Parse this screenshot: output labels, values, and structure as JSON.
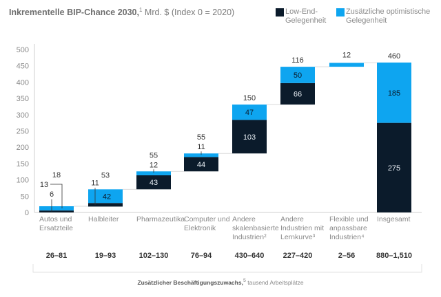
{
  "chart_data": {
    "type": "bar",
    "subtype": "waterfall-stacked",
    "title": "Inkrementelle BIP-Chance 2030,",
    "title_footnote": "1",
    "title_unit": "Mrd. $ (Index 0 = 2020)",
    "ylim": [
      0,
      500
    ],
    "yticks": [
      0,
      50,
      100,
      150,
      200,
      250,
      300,
      350,
      400,
      450,
      500
    ],
    "grid": false,
    "legend": {
      "placement": "top-right",
      "entries": [
        {
          "name": "Low-End-Gelegenheit",
          "color": "#0b1b2b"
        },
        {
          "name": "Zusätzliche optimistische Gelegenheit",
          "color": "#0ea5f0"
        }
      ]
    },
    "categories": [
      "Autos und Ersatzteile",
      "Halbleiter",
      "Pharmazeutika",
      "Computer und Elektronik",
      "Andere skalenbasierte Industrien²",
      "Andere Industrien mit Lernkurve³",
      "Flexible und anpassbare Industrien⁴",
      "Insgesamt"
    ],
    "category_lines": [
      [
        "Autos und",
        "Ersatzteile"
      ],
      [
        "Halbleiter"
      ],
      [
        "Pharmazeutika"
      ],
      [
        "Computer und",
        "Elektronik"
      ],
      [
        "Andere",
        "skalenbasierte",
        "Industrien²"
      ],
      [
        "Andere",
        "Industrien mit",
        "Lernkurve³"
      ],
      [
        "Flexible und",
        "anpassbare",
        "Industrien⁴"
      ],
      [
        "Insgesamt"
      ]
    ],
    "bases": [
      0,
      18,
      71,
      126,
      181,
      331,
      447,
      0
    ],
    "series": [
      {
        "name": "Low-End-Gelegenheit",
        "values": [
          6,
          11,
          43,
          44,
          103,
          66,
          0,
          275
        ]
      },
      {
        "name": "Zusätzliche optimistische Gelegenheit",
        "values": [
          13,
          42,
          12,
          11,
          47,
          50,
          12,
          185
        ]
      }
    ],
    "totals": [
      18,
      53,
      55,
      55,
      150,
      116,
      12,
      460
    ],
    "data_labels": {
      "low_end": [
        "6",
        "11",
        "43",
        "44",
        "103",
        "66",
        "",
        "275"
      ],
      "optimistic": [
        "13",
        "42",
        "12",
        "11",
        "47",
        "50",
        "",
        "185"
      ],
      "total": [
        "18",
        "53",
        "55",
        "55",
        "150",
        "116",
        "12",
        "460"
      ]
    },
    "employment_growth": {
      "label": "Zusätzlicher Beschäftigungszuwachs,",
      "label_footnote": "5",
      "unit": "tausend Arbeitsplätze",
      "values": [
        "26–81",
        "19–93",
        "102–130",
        "76–94",
        "430–640",
        "227–420",
        "2–56",
        "880–1,510"
      ]
    }
  }
}
